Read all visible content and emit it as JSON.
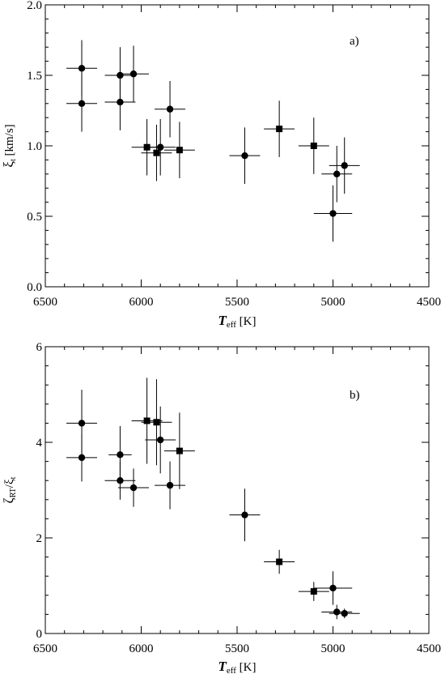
{
  "chart_data": [
    {
      "type": "scatter",
      "panel_label": "a)",
      "xlabel": {
        "main": "T",
        "sub": "eff",
        "unit": " [K]"
      },
      "ylabel": {
        "main": "ξ",
        "sub": "t",
        "unit": " [km/s]"
      },
      "xlim": [
        6500,
        4500
      ],
      "ylim": [
        0.0,
        2.0
      ],
      "xticks": [
        6500,
        6000,
        5500,
        5000,
        4500
      ],
      "xtick_labels": [
        "6500",
        "6000",
        "5500",
        "5000",
        "4500"
      ],
      "yticks": [
        0.0,
        0.5,
        1.0,
        1.5,
        2.0
      ],
      "ytick_labels": [
        "0.0",
        "0.5",
        "1.0",
        "1.5",
        "2.0"
      ],
      "series": [
        {
          "marker": "circle",
          "points": [
            {
              "x": 6310,
              "y": 1.55,
              "xerr": 80,
              "yerr": 0.2
            },
            {
              "x": 6310,
              "y": 1.3,
              "xerr": 80,
              "yerr": 0.2
            },
            {
              "x": 6110,
              "y": 1.5,
              "xerr": 80,
              "yerr": 0.2
            },
            {
              "x": 6040,
              "y": 1.51,
              "xerr": 80,
              "yerr": 0.2
            },
            {
              "x": 6110,
              "y": 1.31,
              "xerr": 80,
              "yerr": 0.2
            },
            {
              "x": 5850,
              "y": 1.26,
              "xerr": 80,
              "yerr": 0.2
            },
            {
              "x": 5900,
              "y": 0.99,
              "xerr": 80,
              "yerr": 0.2
            },
            {
              "x": 5460,
              "y": 0.93,
              "xerr": 80,
              "yerr": 0.2
            },
            {
              "x": 4980,
              "y": 0.8,
              "xerr": 80,
              "yerr": 0.2
            },
            {
              "x": 4940,
              "y": 0.86,
              "xerr": 80,
              "yerr": 0.2
            },
            {
              "x": 5000,
              "y": 0.52,
              "xerr": 100,
              "yerr": 0.2
            }
          ]
        },
        {
          "marker": "square",
          "points": [
            {
              "x": 5970,
              "y": 0.99,
              "xerr": 80,
              "yerr": 0.2
            },
            {
              "x": 5920,
              "y": 0.95,
              "xerr": 80,
              "yerr": 0.2
            },
            {
              "x": 5800,
              "y": 0.97,
              "xerr": 80,
              "yerr": 0.2
            },
            {
              "x": 5280,
              "y": 1.12,
              "xerr": 80,
              "yerr": 0.2
            },
            {
              "x": 5100,
              "y": 1.0,
              "xerr": 80,
              "yerr": 0.2
            }
          ]
        }
      ]
    },
    {
      "type": "scatter",
      "panel_label": "b)",
      "xlabel": {
        "main": "T",
        "sub": "eff",
        "unit": " [K]"
      },
      "ylabel": {
        "main": "ζ",
        "sub": "RT",
        "unit": "/ξ",
        "sub2": "t"
      },
      "xlim": [
        6500,
        4500
      ],
      "ylim": [
        0,
        6
      ],
      "xticks": [
        6500,
        6000,
        5500,
        5000,
        4500
      ],
      "xtick_labels": [
        "6500",
        "6000",
        "5500",
        "5000",
        "4500"
      ],
      "yticks": [
        0,
        2,
        4,
        6
      ],
      "ytick_labels": [
        "0",
        "2",
        "4",
        "6"
      ],
      "series": [
        {
          "marker": "circle",
          "points": [
            {
              "x": 6310,
              "y": 4.4,
              "xerr": 80,
              "yerr": 0.7
            },
            {
              "x": 6310,
              "y": 3.68,
              "xerr": 80,
              "yerr": 0.5
            },
            {
              "x": 6110,
              "y": 3.74,
              "xerr": 60,
              "yerr": 0.6
            },
            {
              "x": 6110,
              "y": 3.2,
              "xerr": 80,
              "yerr": 0.4
            },
            {
              "x": 6040,
              "y": 3.05,
              "xerr": 80,
              "yerr": 0.4
            },
            {
              "x": 5900,
              "y": 4.05,
              "xerr": 80,
              "yerr": 0.7
            },
            {
              "x": 5850,
              "y": 3.1,
              "xerr": 80,
              "yerr": 0.5
            },
            {
              "x": 5460,
              "y": 2.48,
              "xerr": 80,
              "yerr": 0.55
            },
            {
              "x": 5000,
              "y": 0.95,
              "xerr": 100,
              "yerr": 0.35
            },
            {
              "x": 4980,
              "y": 0.45,
              "xerr": 80,
              "yerr": 0.15
            },
            {
              "x": 4940,
              "y": 0.42,
              "xerr": 80,
              "yerr": 0.1
            }
          ]
        },
        {
          "marker": "square",
          "points": [
            {
              "x": 5970,
              "y": 4.45,
              "xerr": 80,
              "yerr": 0.9
            },
            {
              "x": 5920,
              "y": 4.42,
              "xerr": 80,
              "yerr": 0.9
            },
            {
              "x": 5800,
              "y": 3.82,
              "xerr": 80,
              "yerr": 0.8
            },
            {
              "x": 5280,
              "y": 1.5,
              "xerr": 80,
              "yerr": 0.25
            },
            {
              "x": 5100,
              "y": 0.88,
              "xerr": 80,
              "yerr": 0.2
            }
          ]
        }
      ]
    }
  ]
}
